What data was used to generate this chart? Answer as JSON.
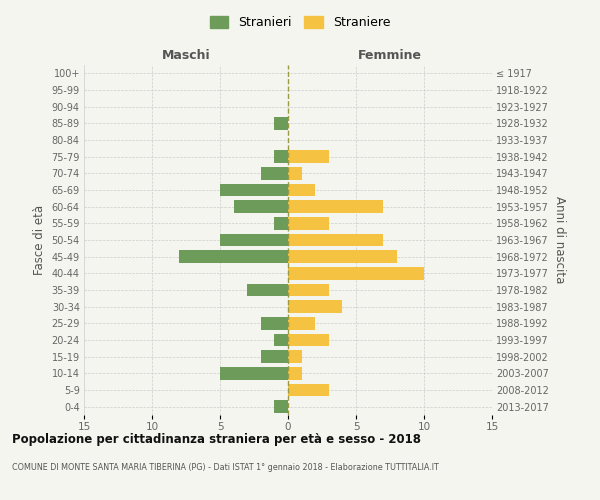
{
  "age_groups": [
    "0-4",
    "5-9",
    "10-14",
    "15-19",
    "20-24",
    "25-29",
    "30-34",
    "35-39",
    "40-44",
    "45-49",
    "50-54",
    "55-59",
    "60-64",
    "65-69",
    "70-74",
    "75-79",
    "80-84",
    "85-89",
    "90-94",
    "95-99",
    "100+"
  ],
  "birth_years": [
    "2013-2017",
    "2008-2012",
    "2003-2007",
    "1998-2002",
    "1993-1997",
    "1988-1992",
    "1983-1987",
    "1978-1982",
    "1973-1977",
    "1968-1972",
    "1963-1967",
    "1958-1962",
    "1953-1957",
    "1948-1952",
    "1943-1947",
    "1938-1942",
    "1933-1937",
    "1928-1932",
    "1923-1927",
    "1918-1922",
    "≤ 1917"
  ],
  "males": [
    1,
    0,
    5,
    2,
    1,
    2,
    0,
    3,
    0,
    8,
    5,
    1,
    4,
    5,
    2,
    1,
    0,
    1,
    0,
    0,
    0
  ],
  "females": [
    0,
    3,
    1,
    1,
    3,
    2,
    4,
    3,
    10,
    8,
    7,
    3,
    7,
    2,
    1,
    3,
    0,
    0,
    0,
    0,
    0
  ],
  "male_color": "#6d9b5a",
  "female_color": "#f5c242",
  "background_color": "#f5f5ef",
  "grid_color": "#cccccc",
  "center_line_color": "#999944",
  "title": "Popolazione per cittadinanza straniera per età e sesso - 2018",
  "subtitle": "COMUNE DI MONTE SANTA MARIA TIBERINA (PG) - Dati ISTAT 1° gennaio 2018 - Elaborazione TUTTITALIA.IT",
  "col_header_left": "Maschi",
  "col_header_right": "Femmine",
  "ylabel_left": "Fasce di età",
  "ylabel_right": "Anni di nascita",
  "xlim": 15,
  "legend_labels": [
    "Stranieri",
    "Straniere"
  ],
  "col_header_color": "#555555",
  "tick_label_color": "#666666",
  "title_color": "#111111",
  "subtitle_color": "#555555"
}
